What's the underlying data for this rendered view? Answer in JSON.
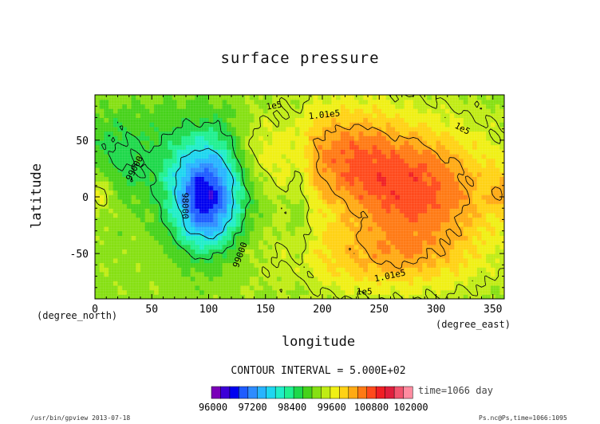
{
  "chart_data": {
    "type": "heatmap",
    "title": "surface pressure",
    "xlabel": "longitude",
    "ylabel": "latitude",
    "x_unit_label": "(degree_east)",
    "y_unit_label": "(degree_north)",
    "xlim": [
      0,
      360
    ],
    "ylim": [
      -90,
      90
    ],
    "x_ticks": [
      0,
      50,
      100,
      150,
      200,
      250,
      300,
      350
    ],
    "y_ticks": [
      -50,
      0,
      50
    ],
    "grid": false,
    "contour_interval_text": "CONTOUR INTERVAL = 5.000E+02",
    "time_text": "time=1066 day",
    "colorbar": {
      "tick_values": [
        96000,
        97200,
        98400,
        99600,
        100800,
        102000
      ],
      "tick_text": [
        "96000",
        "97200",
        "98400",
        "99600",
        "100800",
        "102000"
      ],
      "colors": [
        "#7a00b8",
        "#3c00d8",
        "#0000f0",
        "#1e5cff",
        "#2e8cff",
        "#28b4ff",
        "#1ed6f0",
        "#20eec8",
        "#20f090",
        "#1ed84a",
        "#46d21a",
        "#86e012",
        "#c0ec14",
        "#f0f014",
        "#ffd214",
        "#ffaa14",
        "#ff7a14",
        "#ff4a1c",
        "#f01e24",
        "#e01e3c",
        "#f2546e",
        "#ff8ca0"
      ]
    },
    "contour_labels": [
      {
        "text": "1e5",
        "lon": 158,
        "lat": 78,
        "rotate": -10
      },
      {
        "text": "1.01e5",
        "lon": 202,
        "lat": 70,
        "rotate": -6
      },
      {
        "text": "1e5",
        "lon": 322,
        "lat": 58,
        "rotate": 28
      },
      {
        "text": "99000",
        "lon": 37,
        "lat": 24,
        "rotate": -62
      },
      {
        "text": "98000",
        "lon": 77,
        "lat": -8,
        "rotate": 90
      },
      {
        "text": "99000",
        "lon": 130,
        "lat": -52,
        "rotate": -70
      },
      {
        "text": "1.01e5",
        "lon": 260,
        "lat": -72,
        "rotate": -12
      },
      {
        "text": "1e5",
        "lon": 237,
        "lat": -86,
        "rotate": 0
      }
    ]
  },
  "footer": {
    "left": "/usr/bin/gpview  2013-07-18",
    "right": "Ps.nc@Ps,time=1066:1095"
  }
}
